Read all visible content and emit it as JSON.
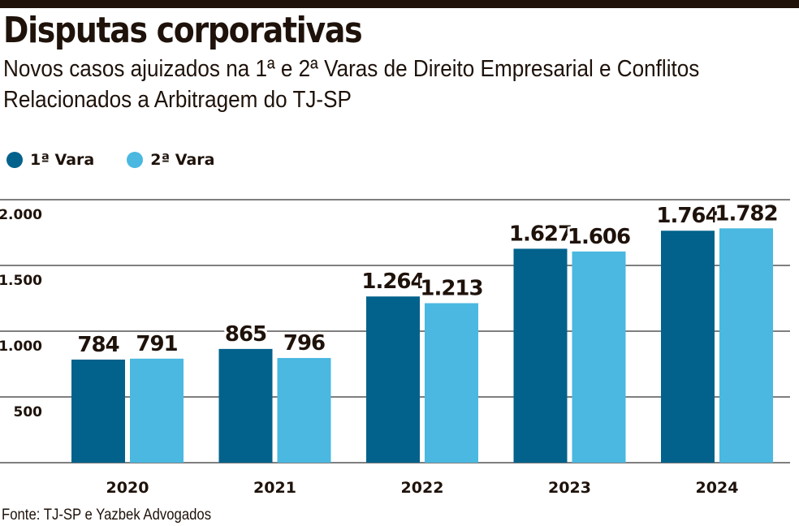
{
  "header": {
    "title": "Disputas corporativas",
    "subtitle": "Novos casos ajuizados na 1ª e 2ª Varas de Direito Empresarial e Conflitos Relacionados a Arbitragem do TJ-SP"
  },
  "footer": {
    "source": "Fonte: TJ-SP e Yazbek Advogados"
  },
  "colors": {
    "series_1": "#03628b",
    "series_2": "#4ab8e0",
    "grid": "#555555",
    "text": "#1e120a"
  },
  "chart_data": {
    "type": "bar",
    "title": "Disputas corporativas",
    "subtitle": "Novos casos ajuizados na 1ª e 2ª Varas de Direito Empresarial e Conflitos Relacionados a Arbitragem do TJ-SP",
    "xlabel": "",
    "ylabel": "",
    "categories": [
      "2020",
      "2021",
      "2022",
      "2023",
      "2024"
    ],
    "series": [
      {
        "name": "1ª Vara",
        "values": [
          784,
          865,
          1264,
          1627,
          1764
        ],
        "labels": [
          "784",
          "865",
          "1.264",
          "1.627",
          "1.764"
        ]
      },
      {
        "name": "2ª Vara",
        "values": [
          791,
          796,
          1213,
          1606,
          1782
        ],
        "labels": [
          "791",
          "796",
          "1.213",
          "1.606",
          "1.782"
        ]
      }
    ],
    "ylim": [
      0,
      2000
    ],
    "yticks": [
      500,
      1000,
      1500,
      2000
    ],
    "ytick_labels": [
      "500",
      "1.000",
      "1.500",
      "2.000"
    ],
    "grid": true,
    "legend_position": "top-left",
    "source": "Fonte: TJ-SP e Yazbek Advogados"
  }
}
